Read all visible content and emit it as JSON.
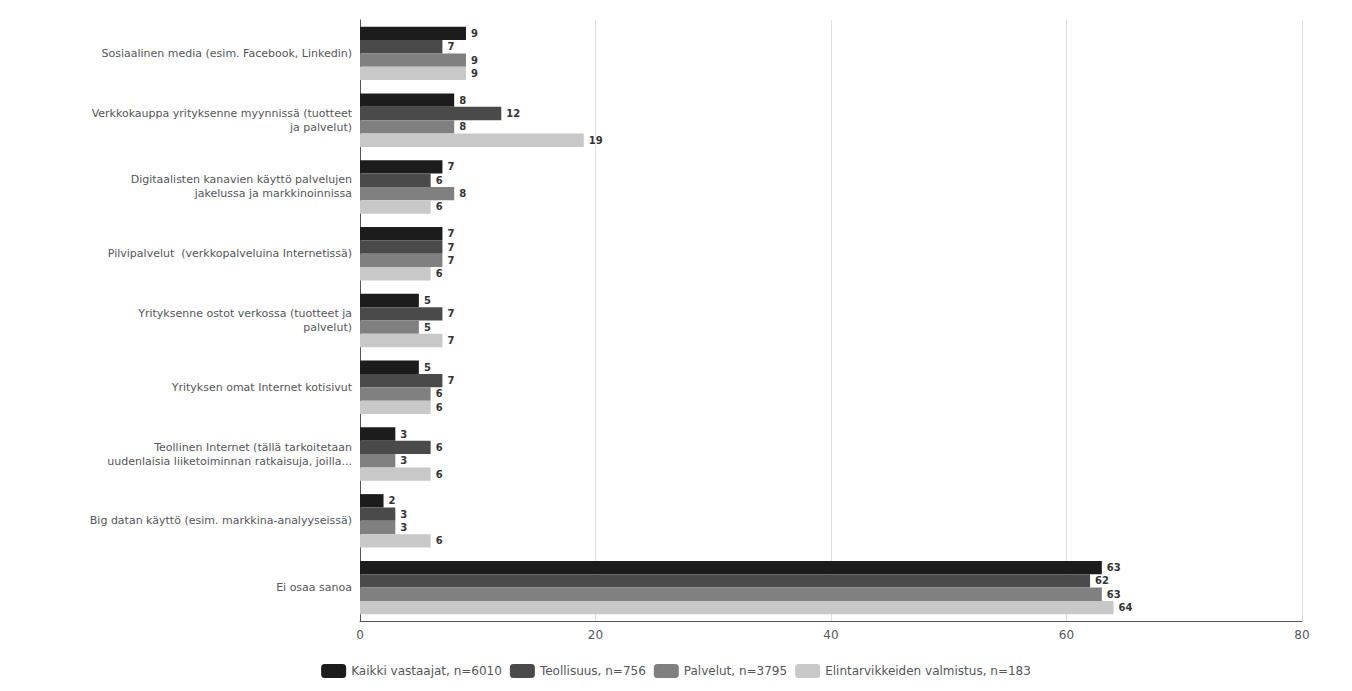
{
  "chart_data": {
    "type": "bar",
    "orientation": "horizontal",
    "categories": [
      "Sosiaalinen media (esim. Facebook, Linkedin)",
      "Verkkokauppa yrityksenne myynnissä (tuotteet\nja palvelut)",
      "Digitaalisten kanavien käyttö palvelujen\njakelussa ja markkinoinnissa",
      "Pilvipalvelut  (verkkopalveluina Internetissä)",
      "Yrityksenne ostot verkossa (tuotteet ja\npalvelut)",
      "Yrityksen omat Internet kotisivut",
      "Teollinen Internet (tällä tarkoitetaan\nuudenlaisia liiketoiminnan ratkaisuja, joilla...",
      "Big datan käyttö (esim. markkina-analyyseissä)",
      "Ei osaa sanoa"
    ],
    "series": [
      {
        "name": "Kaikki vastaajat, n=6010",
        "color": "#1c1c1c",
        "values": [
          9,
          8,
          7,
          7,
          5,
          5,
          3,
          2,
          63
        ]
      },
      {
        "name": "Teollisuus, n=756",
        "color": "#4a4a4a",
        "values": [
          7,
          12,
          6,
          7,
          7,
          7,
          6,
          3,
          62
        ]
      },
      {
        "name": "Palvelut, n=3795",
        "color": "#808080",
        "values": [
          9,
          8,
          8,
          7,
          5,
          6,
          3,
          3,
          63
        ]
      },
      {
        "name": "Elintarvikkeiden valmistus, n=183",
        "color": "#c8c8c8",
        "values": [
          9,
          19,
          6,
          6,
          7,
          6,
          6,
          6,
          64
        ]
      }
    ],
    "xlim": [
      0,
      80
    ],
    "xticks": [
      0,
      20,
      40,
      60,
      80
    ],
    "grid": true,
    "legend": "bottom",
    "data_labels": true
  }
}
